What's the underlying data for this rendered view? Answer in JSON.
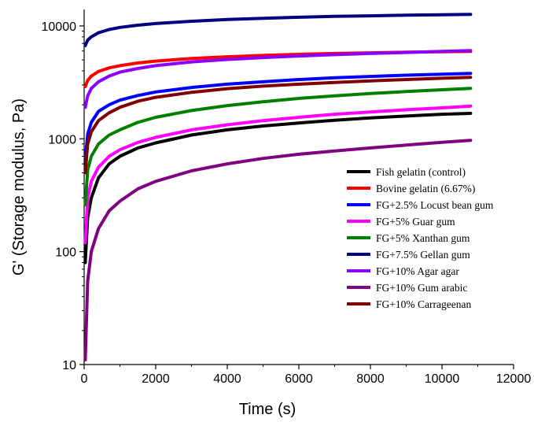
{
  "chart_data": {
    "type": "line",
    "title": "",
    "xlabel": "Time (s)",
    "ylabel": "G' (Storage modulus, Pa)",
    "xlim": [
      0,
      12000
    ],
    "ylim": [
      10,
      14000
    ],
    "yscale": "log",
    "x_ticks": [
      "0",
      "2000",
      "4000",
      "6000",
      "8000",
      "10000",
      "12000"
    ],
    "y_ticks": [
      "10",
      "100",
      "1000",
      "10000"
    ],
    "legend_position": "right",
    "grid": false,
    "x": [
      30,
      100,
      200,
      400,
      700,
      1000,
      1500,
      2000,
      3000,
      4000,
      5000,
      6000,
      7000,
      8000,
      9000,
      10000,
      10800
    ],
    "series": [
      {
        "name": "Fish gelatin (control)",
        "color": "#000000",
        "values": [
          80,
          200,
          300,
          450,
          600,
          700,
          830,
          920,
          1080,
          1200,
          1300,
          1380,
          1460,
          1530,
          1590,
          1650,
          1680
        ]
      },
      {
        "name": "Bovine gelatin (6.67%)",
        "color": "#ff0000",
        "values": [
          2900,
          3300,
          3600,
          3950,
          4250,
          4450,
          4700,
          4880,
          5150,
          5330,
          5480,
          5600,
          5700,
          5780,
          5850,
          5900,
          5950
        ]
      },
      {
        "name": "FG+2.5% Locust bean gum",
        "color": "#0000ff",
        "values": [
          650,
          1100,
          1400,
          1750,
          2000,
          2200,
          2420,
          2600,
          2850,
          3050,
          3200,
          3350,
          3470,
          3570,
          3660,
          3740,
          3800
        ]
      },
      {
        "name": "FG+5% Guar gum",
        "color": "#ff00ff",
        "values": [
          120,
          300,
          420,
          560,
          700,
          800,
          930,
          1030,
          1200,
          1330,
          1450,
          1550,
          1650,
          1730,
          1810,
          1880,
          1950
        ]
      },
      {
        "name": "FG+5% Xanthan gum",
        "color": "#008000",
        "values": [
          260,
          530,
          700,
          900,
          1080,
          1200,
          1400,
          1550,
          1780,
          1970,
          2130,
          2280,
          2400,
          2520,
          2620,
          2720,
          2800
        ]
      },
      {
        "name": "FG+7.5% Gellan gum",
        "color": "#000080",
        "values": [
          6700,
          7500,
          8000,
          8700,
          9300,
          9700,
          10150,
          10500,
          11000,
          11400,
          11700,
          11950,
          12150,
          12300,
          12450,
          12550,
          12650
        ]
      },
      {
        "name": "FG+10% Agar agar",
        "color": "#8b00ff",
        "values": [
          1900,
          2400,
          2800,
          3200,
          3600,
          3900,
          4200,
          4450,
          4800,
          5050,
          5250,
          5420,
          5570,
          5700,
          5820,
          5950,
          6050
        ]
      },
      {
        "name": "FG+10% Gum arabic",
        "color": "#800080",
        "values": [
          11,
          55,
          100,
          160,
          230,
          280,
          360,
          420,
          520,
          600,
          670,
          730,
          780,
          830,
          880,
          930,
          970
        ]
      },
      {
        "name": "FG+10% Carrageenan",
        "color": "#800000",
        "values": [
          500,
          900,
          1150,
          1450,
          1700,
          1900,
          2150,
          2330,
          2580,
          2780,
          2930,
          3050,
          3160,
          3260,
          3350,
          3440,
          3500
        ]
      }
    ]
  }
}
